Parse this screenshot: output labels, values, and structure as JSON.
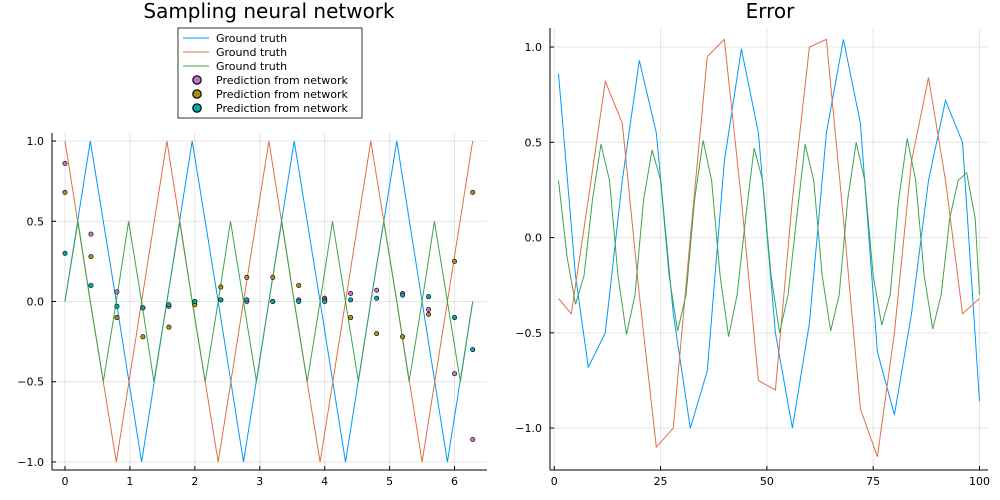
{
  "colors": {
    "c1": "#009AFA",
    "c2": "#E36F47",
    "c3": "#3EA44E",
    "c4": "#C372CD",
    "c5": "#AC8E18",
    "c6": "#00A9AD"
  },
  "chart_data": [
    {
      "type": "line",
      "title": "Sampling neural network",
      "xlim": [
        -0.2,
        6.5
      ],
      "ylim": [
        -1.05,
        1.05
      ],
      "xticks": [
        0,
        1,
        2,
        3,
        4,
        5,
        6
      ],
      "yticks": [
        -1.0,
        -0.5,
        0.0,
        0.5,
        1.0
      ],
      "xtick_labels": [
        "0",
        "1",
        "2",
        "3",
        "4",
        "5",
        "6"
      ],
      "ytick_labels": [
        "−1.0",
        "−0.5",
        "0.0",
        "0.5",
        "1.0"
      ],
      "grid": true,
      "legend": "top-center",
      "series": [
        {
          "name": "Ground truth",
          "kind": "line",
          "color": "#009AFA",
          "x": [
            0,
            0.39,
            0.79,
            1.18,
            1.57,
            1.96,
            2.36,
            2.75,
            3.14,
            3.53,
            3.93,
            4.32,
            4.71,
            5.11,
            5.5,
            5.89,
            6.28
          ],
          "y": [
            0.0,
            1.0,
            0.0,
            -1.0,
            0.0,
            1.0,
            0.0,
            -1.0,
            0.0,
            1.0,
            0.0,
            -1.0,
            0.0,
            1.0,
            0.0,
            -1.0,
            0.0
          ]
        },
        {
          "name": "Ground truth",
          "kind": "line",
          "color": "#E36F47",
          "x": [
            0,
            0.39,
            0.79,
            1.18,
            1.57,
            1.96,
            2.36,
            2.75,
            3.14,
            3.53,
            3.93,
            4.32,
            4.71,
            5.11,
            5.5,
            5.89,
            6.28
          ],
          "y": [
            1.0,
            0.0,
            -1.0,
            0.0,
            1.0,
            0.0,
            -1.0,
            0.0,
            1.0,
            0.0,
            -1.0,
            0.0,
            1.0,
            0.0,
            -1.0,
            0.0,
            1.0
          ]
        },
        {
          "name": "Ground truth",
          "kind": "line",
          "color": "#3EA44E",
          "x": [
            0,
            0.2,
            0.39,
            0.59,
            0.79,
            0.98,
            1.18,
            1.37,
            1.57,
            1.77,
            1.96,
            2.16,
            2.36,
            2.55,
            2.75,
            2.95,
            3.14,
            3.34,
            3.53,
            3.73,
            3.93,
            4.12,
            4.32,
            4.52,
            4.71,
            4.91,
            5.11,
            5.3,
            5.5,
            5.69,
            5.89,
            6.09,
            6.28
          ],
          "y": [
            0.0,
            0.5,
            0.0,
            -0.5,
            0.0,
            0.5,
            0.0,
            -0.5,
            0.0,
            0.5,
            0.0,
            -0.5,
            0.0,
            0.5,
            0.0,
            -0.5,
            0.0,
            0.5,
            0.0,
            -0.5,
            0.0,
            0.5,
            0.0,
            -0.5,
            0.0,
            0.5,
            0.0,
            -0.5,
            0.0,
            0.5,
            0.0,
            -0.5,
            0.0
          ]
        },
        {
          "name": "Prediction from network",
          "kind": "scatter",
          "color": "#C372CD",
          "x": [
            0,
            0.4,
            0.8,
            1.2,
            1.6,
            2.0,
            2.4,
            2.8,
            3.2,
            3.6,
            4.0,
            4.4,
            4.8,
            5.2,
            5.6,
            6.0,
            6.28
          ],
          "y": [
            0.86,
            0.42,
            0.06,
            -0.04,
            -0.03,
            0.0,
            0.01,
            0.0,
            0.0,
            0.01,
            0.02,
            0.05,
            0.07,
            0.05,
            -0.05,
            -0.45,
            -0.86
          ]
        },
        {
          "name": "Prediction from network",
          "kind": "scatter",
          "color": "#AC8E18",
          "x": [
            0,
            0.4,
            0.8,
            1.2,
            1.6,
            2.0,
            2.4,
            2.8,
            3.2,
            3.6,
            4.0,
            4.4,
            4.8,
            5.2,
            5.6,
            6.0,
            6.28
          ],
          "y": [
            0.68,
            0.28,
            -0.1,
            -0.22,
            -0.16,
            -0.02,
            0.09,
            0.15,
            0.15,
            0.1,
            0.01,
            -0.1,
            -0.2,
            -0.22,
            -0.08,
            0.25,
            0.68
          ]
        },
        {
          "name": "Prediction from network",
          "kind": "scatter",
          "color": "#00A9AD",
          "x": [
            0,
            0.4,
            0.8,
            1.2,
            1.6,
            2.0,
            2.4,
            2.8,
            3.2,
            3.6,
            4.0,
            4.4,
            4.8,
            5.2,
            5.6,
            6.0,
            6.28
          ],
          "y": [
            0.3,
            0.1,
            -0.03,
            -0.04,
            -0.02,
            0.0,
            0.01,
            0.01,
            0.0,
            0.0,
            0.0,
            0.01,
            0.02,
            0.04,
            0.03,
            -0.1,
            -0.3
          ]
        }
      ]
    },
    {
      "type": "line",
      "title": "Error",
      "xlim": [
        -1,
        102
      ],
      "ylim": [
        -1.22,
        1.1
      ],
      "xticks": [
        0,
        25,
        50,
        75,
        100
      ],
      "yticks": [
        -1.0,
        -0.5,
        0.0,
        0.5,
        1.0
      ],
      "xtick_labels": [
        "0",
        "25",
        "50",
        "75",
        "100"
      ],
      "ytick_labels": [
        "−1.0",
        "−0.5",
        "0.0",
        "0.5",
        "1.0"
      ],
      "grid": true,
      "series": [
        {
          "color": "#009AFA",
          "x": [
            1,
            5,
            8,
            12,
            16,
            20,
            24,
            28,
            32,
            36,
            40,
            44,
            48,
            52,
            56,
            60,
            64,
            68,
            72,
            76,
            80,
            84,
            88,
            92,
            96,
            100
          ],
          "y": [
            0.86,
            -0.2,
            -0.68,
            -0.5,
            0.3,
            0.93,
            0.55,
            -0.4,
            -1.0,
            -0.7,
            0.4,
            0.99,
            0.55,
            -0.5,
            -1.0,
            -0.45,
            0.55,
            1.04,
            0.6,
            -0.6,
            -0.93,
            -0.4,
            0.3,
            0.72,
            0.5,
            -0.86
          ]
        },
        {
          "color": "#E36F47",
          "x": [
            1,
            4,
            8,
            12,
            16,
            20,
            24,
            28,
            32,
            36,
            40,
            44,
            48,
            52,
            56,
            60,
            64,
            68,
            72,
            76,
            80,
            84,
            88,
            92,
            96,
            100
          ],
          "y": [
            -0.32,
            -0.4,
            0.2,
            0.82,
            0.6,
            -0.3,
            -1.1,
            -1.0,
            0.0,
            0.95,
            1.04,
            0.2,
            -0.75,
            -0.8,
            0.2,
            1.0,
            1.04,
            0.1,
            -0.9,
            -1.15,
            -0.5,
            0.4,
            0.84,
            0.3,
            -0.4,
            -0.32
          ]
        },
        {
          "color": "#3EA44E",
          "x": [
            1,
            3,
            5,
            7,
            9,
            11,
            13,
            15,
            17,
            19,
            21,
            23,
            25,
            27,
            29,
            31,
            33,
            35,
            37,
            39,
            41,
            43,
            45,
            47,
            49,
            51,
            53,
            55,
            57,
            59,
            61,
            63,
            65,
            67,
            69,
            71,
            73,
            75,
            77,
            79,
            81,
            83,
            85,
            87,
            89,
            91,
            93,
            95,
            97,
            99,
            100
          ],
          "y": [
            0.3,
            -0.1,
            -0.35,
            -0.2,
            0.2,
            0.49,
            0.3,
            -0.2,
            -0.51,
            -0.3,
            0.2,
            0.46,
            0.3,
            -0.2,
            -0.49,
            -0.3,
            0.2,
            0.51,
            0.3,
            -0.2,
            -0.52,
            -0.3,
            0.1,
            0.47,
            0.3,
            -0.2,
            -0.5,
            -0.3,
            0.1,
            0.49,
            0.3,
            -0.2,
            -0.49,
            -0.3,
            0.2,
            0.5,
            0.3,
            -0.2,
            -0.46,
            -0.3,
            0.2,
            0.52,
            0.3,
            -0.2,
            -0.48,
            -0.3,
            0.1,
            0.3,
            0.34,
            0.1,
            -0.3
          ]
        }
      ]
    }
  ]
}
